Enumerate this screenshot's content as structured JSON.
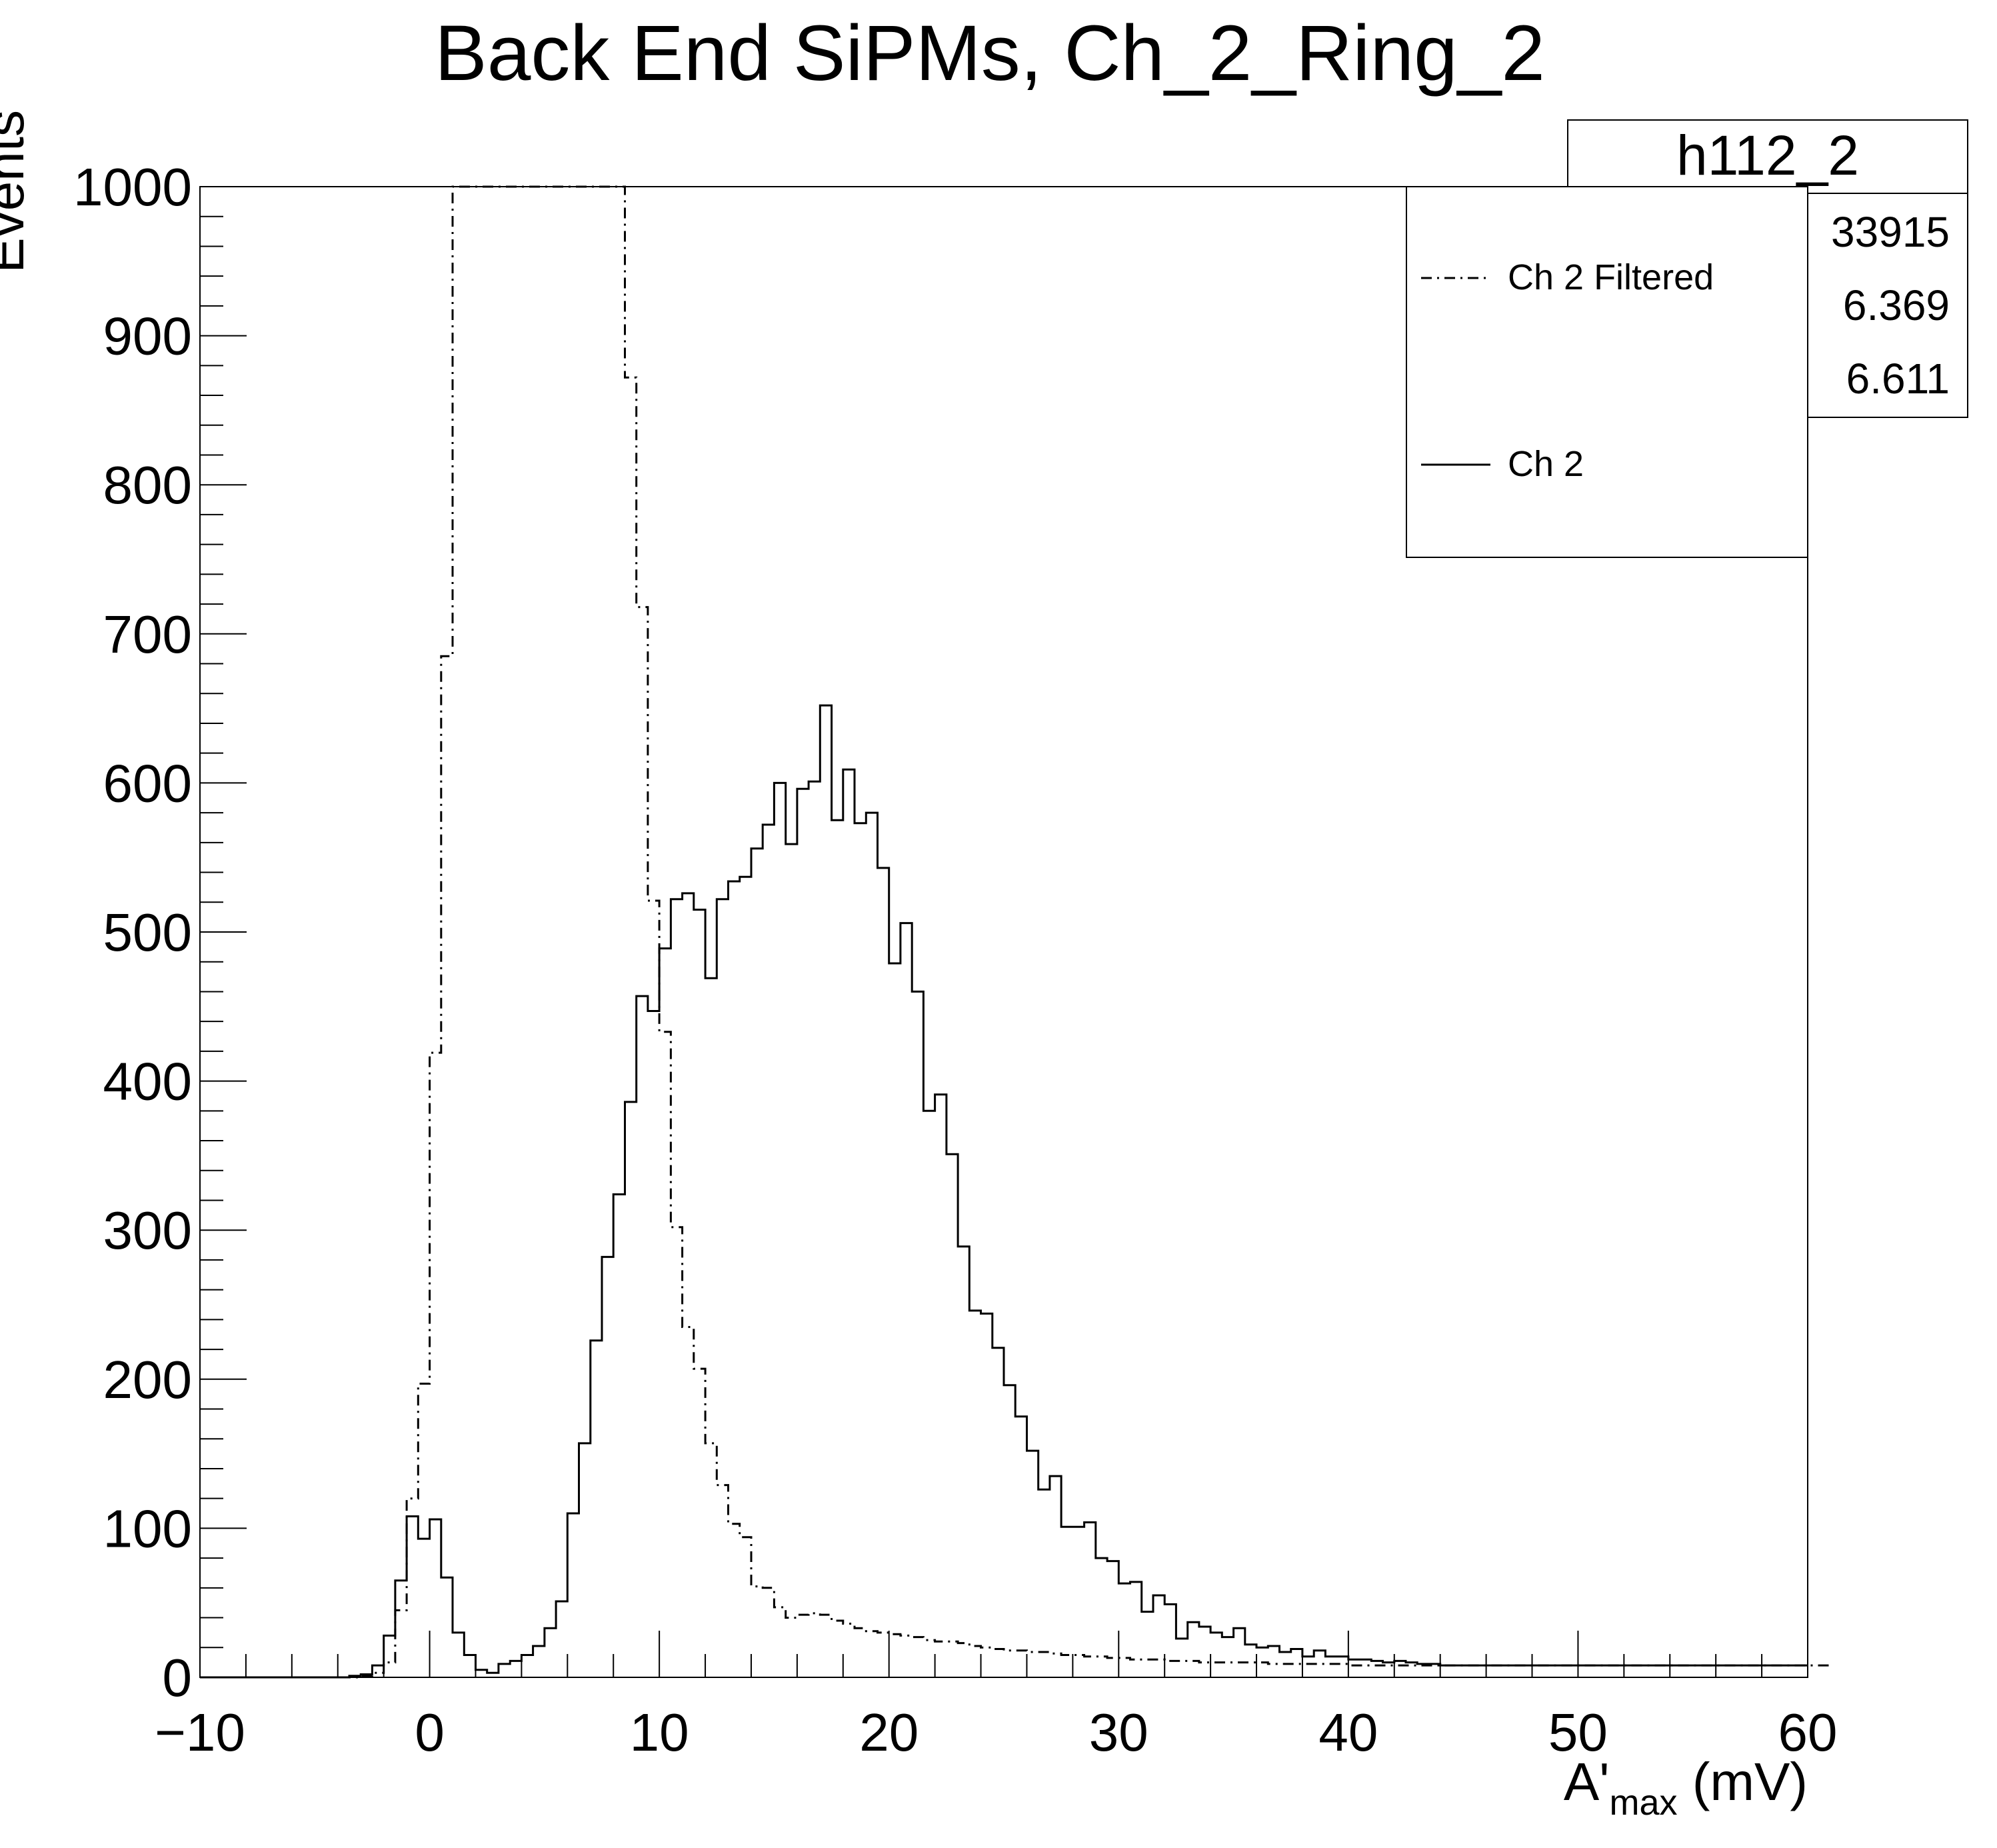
{
  "chart_data": {
    "type": "line",
    "title": "Back End SiPMs, Ch_2_Ring_2",
    "xlabel": {
      "base": "A'",
      "sub": "max",
      "unit": " (mV)"
    },
    "ylabel": "Events",
    "xlim": [
      -10,
      60
    ],
    "ylim": [
      0,
      1000
    ],
    "x_ticks": [
      -10,
      0,
      10,
      20,
      30,
      40,
      50,
      60
    ],
    "y_ticks": [
      0,
      100,
      200,
      300,
      400,
      500,
      600,
      700,
      800,
      900,
      1000
    ],
    "grid": false,
    "legend_position": "top-right",
    "bin_width": 0.5,
    "bin_start": -10,
    "stats_box": {
      "name": "h112_2",
      "values": [
        "33915",
        "6.369",
        "6.611"
      ]
    },
    "series": [
      {
        "name": "Ch 2 Filtered",
        "style": "dash-dot",
        "values": [
          0,
          0,
          0,
          0,
          0,
          0,
          0,
          0,
          0,
          0,
          0,
          0,
          0,
          0,
          1,
          3,
          10,
          45,
          120,
          197,
          419,
          685,
          1000,
          1000,
          1000,
          1000,
          1000,
          1000,
          1000,
          1000,
          1000,
          1000,
          1000,
          1000,
          1000,
          1000,
          1000,
          872,
          718,
          521,
          433,
          302,
          235,
          207,
          157,
          129,
          103,
          94,
          61,
          60,
          47,
          40,
          42,
          43,
          42,
          38,
          36,
          33,
          31,
          30,
          29,
          28,
          27,
          25,
          24,
          24,
          23,
          21,
          20,
          19,
          18,
          18,
          17,
          17,
          16,
          15,
          15,
          14,
          14,
          13,
          13,
          12,
          12,
          12,
          11,
          11,
          11,
          10,
          10,
          10,
          10,
          10,
          10,
          9,
          9,
          9,
          9,
          9,
          9,
          9,
          8,
          8,
          8,
          8,
          8,
          8,
          8,
          8,
          8,
          8,
          8,
          8,
          8,
          8,
          8,
          8,
          8,
          8,
          8,
          8,
          8,
          8,
          8,
          8,
          8,
          8,
          8,
          8,
          8,
          8,
          8,
          8,
          8,
          8,
          8,
          8,
          8,
          8,
          8,
          8,
          8,
          8
        ]
      },
      {
        "name": "Ch 2",
        "style": "solid",
        "values": [
          0,
          0,
          0,
          0,
          0,
          0,
          0,
          0,
          0,
          0,
          0,
          0,
          0,
          1,
          2,
          8,
          28,
          65,
          108,
          93,
          106,
          67,
          30,
          15,
          5,
          3,
          9,
          11,
          15,
          21,
          33,
          51,
          110,
          157,
          226,
          282,
          324,
          386,
          457,
          447,
          489,
          522,
          526,
          515,
          469,
          522,
          534,
          537,
          556,
          572,
          600,
          559,
          596,
          601,
          652,
          575,
          609,
          573,
          580,
          543,
          479,
          506,
          460,
          380,
          391,
          351,
          289,
          246,
          244,
          221,
          196,
          175,
          152,
          126,
          135,
          101,
          101,
          104,
          80,
          78,
          63,
          64,
          44,
          55,
          49,
          26,
          37,
          34,
          30,
          27,
          33,
          22,
          20,
          21,
          17,
          19,
          14,
          18,
          14,
          14,
          12,
          12,
          11,
          10,
          11,
          10,
          9,
          9,
          8,
          8,
          8,
          8,
          8,
          8,
          8,
          8,
          8,
          8,
          8,
          8,
          8,
          8,
          8,
          8,
          8,
          8,
          8,
          8,
          8,
          8,
          8,
          8,
          8,
          8,
          8,
          8,
          8,
          8,
          8,
          8
        ]
      }
    ]
  }
}
